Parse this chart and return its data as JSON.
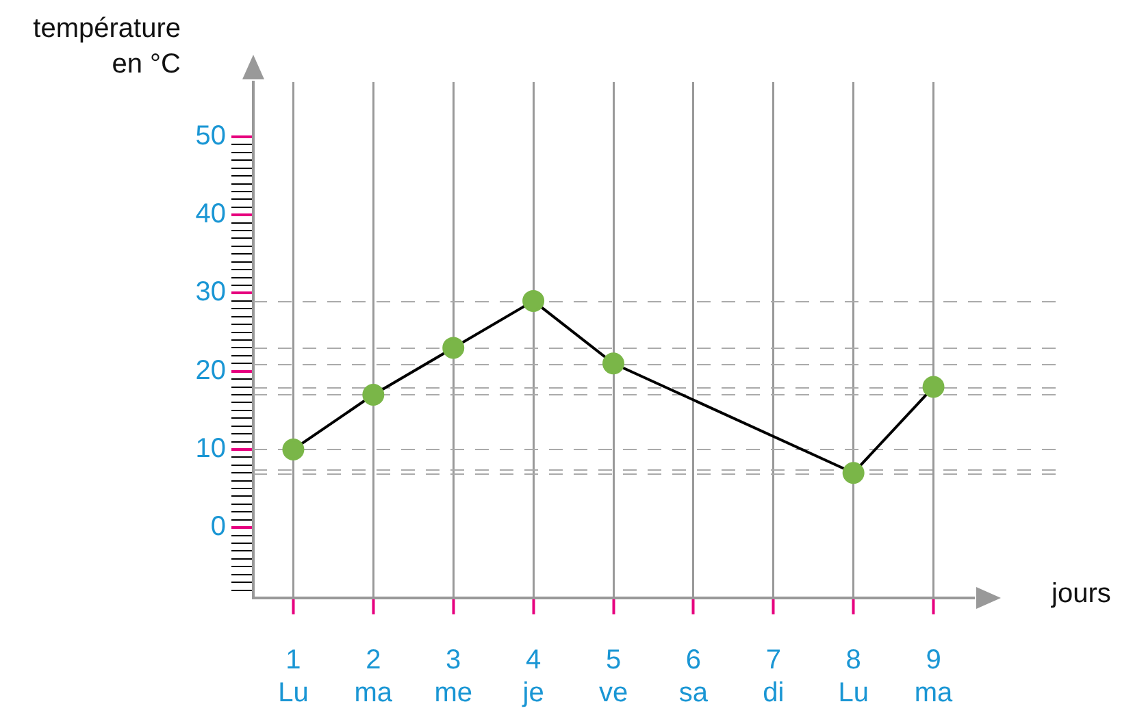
{
  "chart_data": {
    "type": "line",
    "xlabel": "jours",
    "ylabel": "température en °C",
    "categories": [
      "1\nLu",
      "2\nma",
      "3\nme",
      "4\nje",
      "5\nve",
      "6\nsa",
      "7\ndi",
      "8\nLu",
      "9\nma"
    ],
    "series": [
      {
        "color": "#7ab648",
        "values": [
          10,
          17,
          23,
          29,
          21,
          null,
          null,
          7,
          18
        ]
      }
    ],
    "ylim": [
      -9,
      57
    ],
    "yticks": [
      {
        "value": -8,
        "label": null
      },
      {
        "value": -7,
        "label": null
      },
      {
        "value": -6,
        "label": null
      },
      {
        "value": -5,
        "label": null
      },
      {
        "value": -4,
        "label": null
      },
      {
        "value": -3,
        "label": null
      },
      {
        "value": -2,
        "label": null
      },
      {
        "value": -1,
        "label": null
      },
      0,
      {
        "value": 1,
        "label": null
      },
      {
        "value": 2,
        "label": null
      },
      {
        "value": 3,
        "label": null
      },
      {
        "value": 4,
        "label": null
      },
      {
        "value": 5,
        "label": null
      },
      {
        "value": 6,
        "label": null
      },
      {
        "value": 7,
        "label": null
      },
      {
        "value": 8,
        "label": null
      },
      {
        "value": 9,
        "label": null
      },
      10,
      {
        "value": 11,
        "label": null
      },
      {
        "value": 12,
        "label": null
      },
      {
        "value": 13,
        "label": null
      },
      {
        "value": 14,
        "label": null
      },
      {
        "value": 15,
        "label": null
      },
      {
        "value": 16,
        "label": null
      },
      {
        "value": 17,
        "label": null
      },
      {
        "value": 18,
        "label": null
      },
      {
        "value": 19,
        "label": null
      },
      20,
      {
        "value": 21,
        "label": null
      },
      {
        "value": 22,
        "label": null
      },
      {
        "value": 23,
        "label": null
      },
      {
        "value": 24,
        "label": null
      },
      {
        "value": 25,
        "label": null
      },
      {
        "value": 26,
        "label": null
      },
      {
        "value": 27,
        "label": null
      },
      {
        "value": 28,
        "label": null
      },
      {
        "value": 29,
        "label": null
      },
      30,
      {
        "value": 31,
        "label": null
      },
      {
        "value": 32,
        "label": null
      },
      {
        "value": 33,
        "label": null
      },
      {
        "value": 34,
        "label": null
      },
      {
        "value": 35,
        "label": null
      },
      {
        "value": 36,
        "label": null
      },
      {
        "value": 37,
        "label": null
      },
      {
        "value": 38,
        "label": null
      },
      {
        "value": 39,
        "label": null
      },
      40,
      {
        "value": 41,
        "label": null
      },
      {
        "value": 42,
        "label": null
      },
      {
        "value": 43,
        "label": null
      },
      {
        "value": 44,
        "label": null
      },
      {
        "value": 45,
        "label": null
      },
      {
        "value": 46,
        "label": null
      },
      {
        "value": 47,
        "label": null
      },
      {
        "value": 48,
        "label": null
      },
      {
        "value": 49,
        "label": null
      },
      50
    ],
    "ref_lines": [
      {
        "axis": "y",
        "value": 29,
        "color": "#aaaaaa",
        "line_style": "dashed"
      },
      {
        "axis": "y",
        "value": 23,
        "color": "#aaaaaa",
        "line_style": "dashed"
      },
      {
        "axis": "y",
        "value": 21,
        "color": "#aaaaaa",
        "line_style": "dashed"
      },
      {
        "axis": "y",
        "value": 18,
        "color": "#aaaaaa",
        "line_style": "dashed"
      },
      {
        "axis": "y",
        "value": 17,
        "color": "#aaaaaa",
        "line_style": "dashed"
      },
      {
        "axis": "y",
        "value": 10,
        "color": "#aaaaaa",
        "line_style": "dashed"
      },
      {
        "axis": "y",
        "value": 7.5,
        "color": "#aaaaaa",
        "line_style": "dashed"
      },
      {
        "axis": "y",
        "value": 7,
        "color": "#aaaaaa",
        "line_style": "dashed"
      }
    ],
    "grid": "x",
    "legend": false,
    "marker": "circle",
    "line_style": "solid"
  }
}
